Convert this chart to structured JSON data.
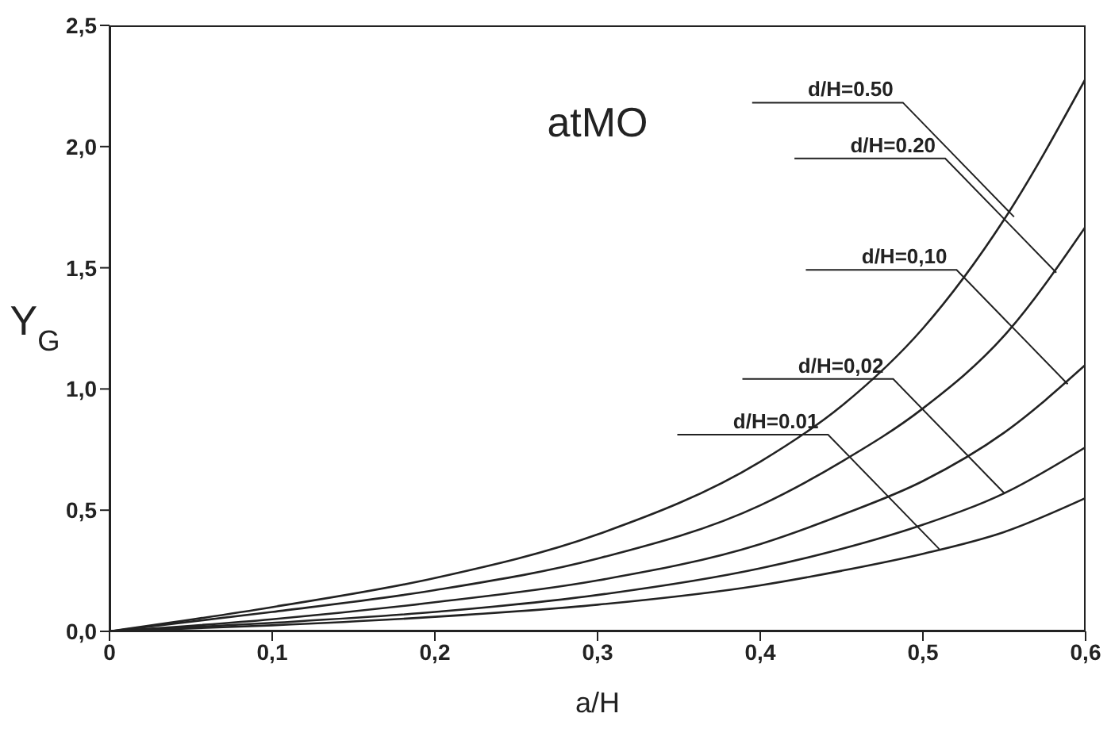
{
  "chart_data": {
    "type": "line",
    "title": "atMO",
    "xlabel": "a/H",
    "ylabel": "Y$_{G}$",
    "x": [
      0,
      0.1,
      0.2,
      0.3,
      0.4,
      0.45,
      0.5,
      0.55,
      0.6
    ],
    "series": [
      {
        "color": "#222222",
        "values": [
          0,
          0.1,
          0.22,
          0.4,
          0.7,
          0.93,
          1.25,
          1.7,
          2.28
        ]
      },
      {
        "color": "#222222",
        "values": [
          0,
          0.08,
          0.17,
          0.3,
          0.52,
          0.7,
          0.92,
          1.22,
          1.67
        ]
      },
      {
        "color": "#222222",
        "values": [
          0,
          0.05,
          0.12,
          0.21,
          0.36,
          0.48,
          0.62,
          0.82,
          1.1
        ]
      },
      {
        "color": "#222222",
        "values": [
          0,
          0.035,
          0.08,
          0.15,
          0.26,
          0.34,
          0.44,
          0.57,
          0.76
        ]
      },
      {
        "color": "#222222",
        "values": [
          0,
          0.025,
          0.06,
          0.11,
          0.19,
          0.25,
          0.32,
          0.41,
          0.55
        ]
      }
    ],
    "xlim": [
      0,
      0.6
    ],
    "xticks": [
      {
        "value": 0,
        "label": "0"
      },
      {
        "value": 0.1,
        "label": "0,1"
      },
      {
        "value": 0.2,
        "label": "0,2"
      },
      {
        "value": 0.3,
        "label": "0,3"
      },
      {
        "value": 0.4,
        "label": "0,4"
      },
      {
        "value": 0.5,
        "label": "0,5"
      },
      {
        "value": 0.6,
        "label": "0,6"
      }
    ],
    "ylim": [
      0,
      2.5
    ],
    "yticks": [
      {
        "value": 0,
        "label": "0,0"
      },
      {
        "value": 0.5,
        "label": "0,5"
      },
      {
        "value": 1,
        "label": "1,0"
      },
      {
        "value": 1.5,
        "label": "1,5"
      },
      {
        "value": 2,
        "label": "2,0"
      },
      {
        "value": 2.5,
        "label": "2,5"
      }
    ],
    "annotations": [
      {
        "text": "d/H=0.50",
        "x": 0.556,
        "y": 1.71
      },
      {
        "text": "d/H=0.20",
        "x": 0.582,
        "y": 1.48
      },
      {
        "text": "d/H=0,10",
        "x": 0.589,
        "y": 1.02
      },
      {
        "text": "d/H=0,02",
        "x": 0.55,
        "y": 0.57
      },
      {
        "text": "d/H=0.01",
        "x": 0.51,
        "y": 0.34
      }
    ],
    "grid": false,
    "legend": false,
    "marker": "none",
    "line_style": "solid"
  }
}
